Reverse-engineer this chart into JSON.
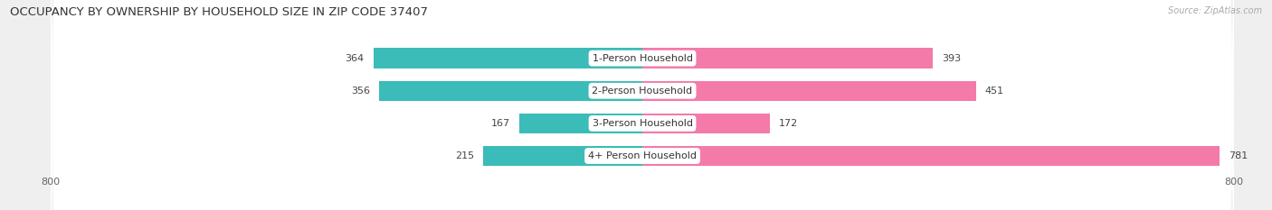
{
  "title": "OCCUPANCY BY OWNERSHIP BY HOUSEHOLD SIZE IN ZIP CODE 37407",
  "source": "Source: ZipAtlas.com",
  "categories": [
    "1-Person Household",
    "2-Person Household",
    "3-Person Household",
    "4+ Person Household"
  ],
  "owner_values": [
    364,
    356,
    167,
    215
  ],
  "renter_values": [
    393,
    451,
    172,
    781
  ],
  "owner_color": "#3bbcb8",
  "renter_color": "#f47aaa",
  "axis_min": -800,
  "axis_max": 800,
  "bg_color": "#efefef",
  "bar_bg_color": "#ffffff",
  "row_bg_color": "#ffffff",
  "title_fontsize": 9.5,
  "label_fontsize": 8,
  "tick_fontsize": 8,
  "source_fontsize": 7,
  "category_fontsize": 8
}
